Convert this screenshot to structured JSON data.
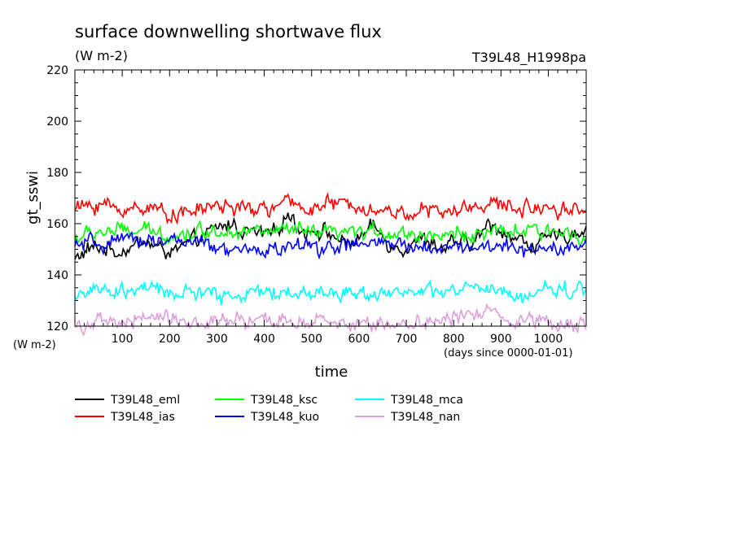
{
  "chart_data": {
    "type": "line",
    "title": "surface downwelling shortwave flux",
    "units": "(W m-2)",
    "run_label": "T39L48_H1998pa",
    "ylabel": "gt_sswi",
    "y_units_label": "(W m-2)",
    "xlabel": "time",
    "x_units_label": "(days since 0000-01-01)",
    "xlim": [
      0,
      1080
    ],
    "ylim": [
      120,
      220
    ],
    "x_ticks": [
      100,
      200,
      300,
      400,
      500,
      600,
      700,
      800,
      900,
      1000
    ],
    "y_ticks": [
      120,
      140,
      160,
      180,
      200,
      220
    ],
    "grid": false,
    "legend_placement": "bottom",
    "series": [
      {
        "name": "T39L48_eml",
        "color": "#000000",
        "x": [
          0,
          30,
          60,
          90,
          120,
          150,
          180,
          210,
          240,
          270,
          300,
          330,
          360,
          390,
          420,
          450,
          480,
          510,
          540,
          570,
          600,
          630,
          660,
          690,
          720,
          750,
          780,
          810,
          840,
          870,
          900,
          930,
          960,
          990,
          1020,
          1050,
          1080
        ],
        "values": [
          146,
          150,
          151,
          149,
          151,
          153,
          150,
          149,
          152,
          155,
          158,
          160,
          157,
          156,
          156,
          164,
          157,
          158,
          156,
          152,
          154,
          159,
          153,
          150,
          154,
          153,
          150,
          153,
          152,
          159,
          158,
          154,
          152,
          153,
          155,
          156,
          158
        ]
      },
      {
        "name": "T39L48_ias",
        "color": "#ff0000",
        "x": [
          0,
          30,
          60,
          90,
          120,
          150,
          180,
          210,
          240,
          270,
          300,
          330,
          360,
          390,
          420,
          450,
          480,
          510,
          540,
          570,
          600,
          630,
          660,
          690,
          720,
          750,
          780,
          810,
          840,
          870,
          900,
          930,
          960,
          990,
          1020,
          1050,
          1080
        ],
        "values": [
          166,
          167,
          168,
          165,
          166,
          167,
          165,
          164,
          164,
          166,
          167,
          167,
          165,
          166,
          166,
          168,
          167,
          166,
          168,
          167,
          168,
          165,
          165,
          164,
          165,
          165,
          164,
          165,
          167,
          168,
          167,
          166,
          166,
          167,
          166,
          166,
          165
        ]
      },
      {
        "name": "T39L48_ksc",
        "color": "#00ff00",
        "x": [
          0,
          30,
          60,
          90,
          120,
          150,
          180,
          210,
          240,
          270,
          300,
          330,
          360,
          390,
          420,
          450,
          480,
          510,
          540,
          570,
          600,
          630,
          660,
          690,
          720,
          750,
          780,
          810,
          840,
          870,
          900,
          930,
          960,
          990,
          1020,
          1050,
          1080
        ],
        "values": [
          154,
          156,
          157,
          157,
          157,
          157,
          156,
          156,
          156,
          157,
          157,
          158,
          157,
          157,
          157,
          157,
          157,
          156,
          156,
          156,
          156,
          157,
          157,
          156,
          156,
          156,
          155,
          156,
          156,
          156,
          156,
          157,
          157,
          156,
          157,
          157,
          156
        ]
      },
      {
        "name": "T39L48_kuo",
        "color": "#0000ff",
        "x": [
          0,
          30,
          60,
          90,
          120,
          150,
          180,
          210,
          240,
          270,
          300,
          330,
          360,
          390,
          420,
          450,
          480,
          510,
          540,
          570,
          600,
          630,
          660,
          690,
          720,
          750,
          780,
          810,
          840,
          870,
          900,
          930,
          960,
          990,
          1020,
          1050,
          1080
        ],
        "values": [
          151,
          152,
          152,
          153,
          153,
          154,
          154,
          153,
          153,
          152,
          150,
          149,
          149,
          150,
          150,
          151,
          151,
          151,
          151,
          151,
          152,
          152,
          152,
          151,
          151,
          151,
          151,
          151,
          151,
          151,
          151,
          150,
          150,
          151,
          151,
          152,
          151
        ]
      },
      {
        "name": "T39L48_mca",
        "color": "#00ffff",
        "x": [
          0,
          30,
          60,
          90,
          120,
          150,
          180,
          210,
          240,
          270,
          300,
          330,
          360,
          390,
          420,
          450,
          480,
          510,
          540,
          570,
          600,
          630,
          660,
          690,
          720,
          750,
          780,
          810,
          840,
          870,
          900,
          930,
          960,
          990,
          1020,
          1050,
          1080
        ],
        "values": [
          132,
          134,
          133,
          133,
          134,
          135,
          133,
          133,
          133,
          133,
          132,
          132,
          133,
          133,
          133,
          133,
          133,
          133,
          133,
          133,
          133,
          133,
          134,
          133,
          133,
          133,
          133,
          134,
          135,
          134,
          133,
          131,
          132,
          134,
          135,
          134,
          134
        ]
      },
      {
        "name": "T39L48_nan",
        "color": "#dda0dd",
        "x": [
          0,
          30,
          60,
          90,
          120,
          150,
          180,
          210,
          240,
          270,
          300,
          330,
          360,
          390,
          420,
          450,
          480,
          510,
          540,
          570,
          600,
          630,
          660,
          690,
          720,
          750,
          780,
          810,
          840,
          870,
          900,
          930,
          960,
          990,
          1020,
          1050,
          1080
        ],
        "values": [
          120,
          121,
          121,
          121,
          122,
          123,
          124,
          123,
          122,
          121,
          121,
          122,
          122,
          121,
          122,
          122,
          122,
          121,
          121,
          121,
          121,
          121,
          121,
          121,
          122,
          122,
          122,
          123,
          125,
          127,
          124,
          122,
          123,
          123,
          122,
          121,
          121
        ]
      }
    ]
  }
}
